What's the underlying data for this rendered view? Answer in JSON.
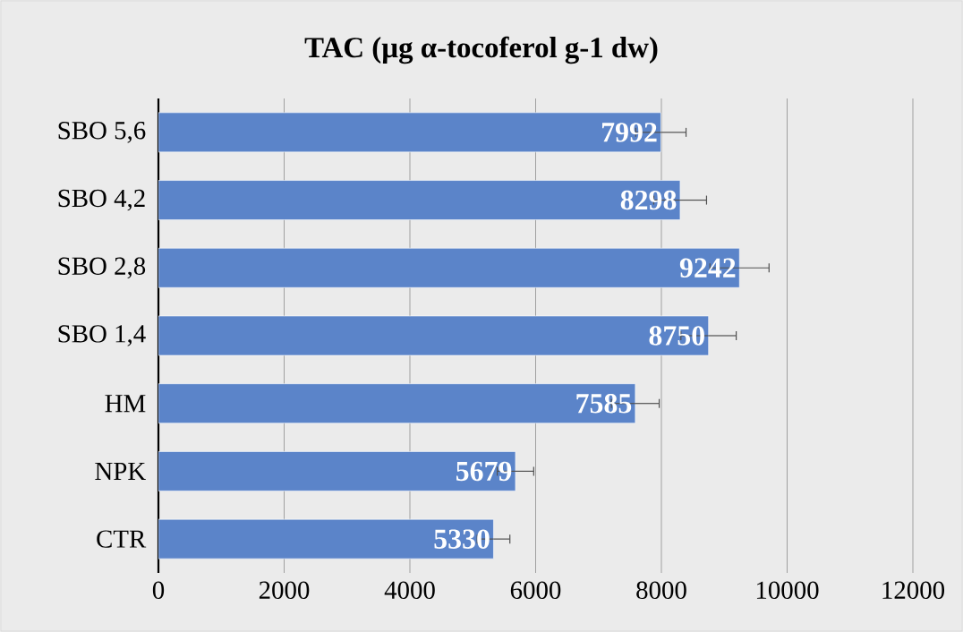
{
  "chart_data": {
    "type": "bar",
    "orientation": "horizontal",
    "title": "TAC (µg α-tocoferol g-1 dw)",
    "categories": [
      "SBO 5,6",
      "SBO 4,2",
      "SBO 2,8",
      "SBO 1,4",
      "HM",
      "NPK",
      "CTR"
    ],
    "values": [
      7992,
      8298,
      9242,
      8750,
      7585,
      5679,
      5330
    ],
    "errors": [
      400,
      420,
      470,
      440,
      380,
      290,
      260
    ],
    "color": "#5b84c9",
    "data_labels": true,
    "grid": "x",
    "xlim": [
      0,
      12000
    ],
    "xticks": [
      0,
      2000,
      4000,
      6000,
      8000,
      10000,
      12000
    ]
  }
}
